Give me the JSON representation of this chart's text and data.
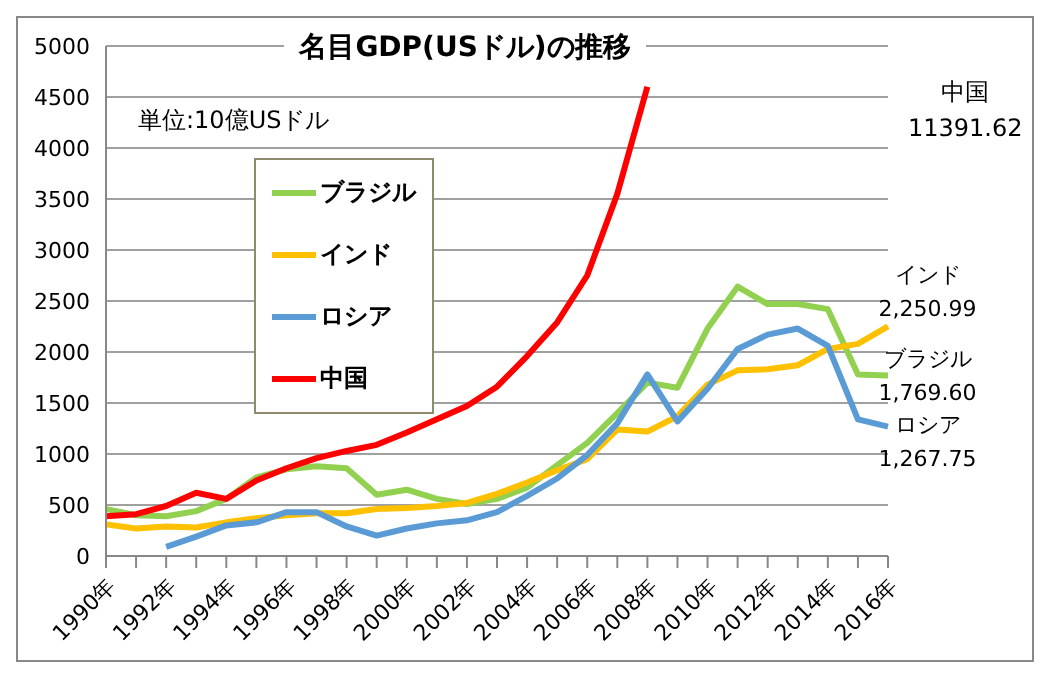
{
  "chart_data": {
    "type": "line",
    "title": "名目GDP(USドル)の推移",
    "categories": [
      "1990年",
      null,
      "1992年",
      null,
      "1994年",
      null,
      "1996年",
      null,
      "1998年",
      null,
      "2000年",
      null,
      "2002年",
      null,
      "2004年",
      null,
      "2006年",
      null,
      "2008年",
      null,
      "2010年",
      null,
      "2012年",
      null,
      "2014年",
      null,
      "2016年"
    ],
    "series": [
      {
        "name": "ブラジル",
        "color": "#92d050",
        "values": [
          460,
          400,
          390,
          440,
          560,
          770,
          850,
          880,
          860,
          600,
          650,
          560,
          510,
          560,
          670,
          890,
          1110,
          1400,
          1700,
          1650,
          2230,
          2640,
          2470,
          2470,
          2420,
          1780,
          1769.6
        ]
      },
      {
        "name": "インド",
        "color": "#ffc000",
        "values": [
          310,
          270,
          290,
          280,
          330,
          370,
          400,
          420,
          420,
          460,
          470,
          490,
          520,
          610,
          720,
          840,
          950,
          1240,
          1220,
          1370,
          1680,
          1820,
          1830,
          1870,
          2030,
          2080,
          2250.99
        ]
      },
      {
        "name": "ロシア",
        "color": "#5b9bd5",
        "values": [
          null,
          null,
          90,
          190,
          300,
          330,
          430,
          430,
          290,
          200,
          270,
          320,
          350,
          430,
          590,
          760,
          990,
          1300,
          1780,
          1320,
          1640,
          2030,
          2170,
          2230,
          2060,
          1340,
          1267.75
        ]
      },
      {
        "name": "中国",
        "color": "#ff0000",
        "values": [
          390,
          410,
          490,
          620,
          560,
          740,
          860,
          960,
          1030,
          1090,
          1210,
          1340,
          1470,
          1660,
          1960,
          2290,
          2750,
          3550,
          4600,
          null,
          null,
          null,
          null,
          null,
          null,
          null,
          null
        ]
      }
    ],
    "ylim": [
      0,
      5000
    ],
    "yticks": [
      0,
      500,
      1000,
      1500,
      2000,
      2500,
      3000,
      3500,
      4000,
      4500,
      5000
    ],
    "grid": "y",
    "legend": "top left",
    "marker": "none",
    "line_style": "solid",
    "annotations": [
      "単位:10億USドル",
      "中国\n11391.62",
      {
        "text": "インド\n2,250.99",
        "x": "2016年",
        "y": 2250.99
      },
      {
        "text": "ブラジル\n1,769.60",
        "x": "2016年",
        "y": 1769.6
      },
      {
        "text": "ロシア\n1,267.75",
        "x": "2016年",
        "y": 1267.75
      }
    ]
  }
}
